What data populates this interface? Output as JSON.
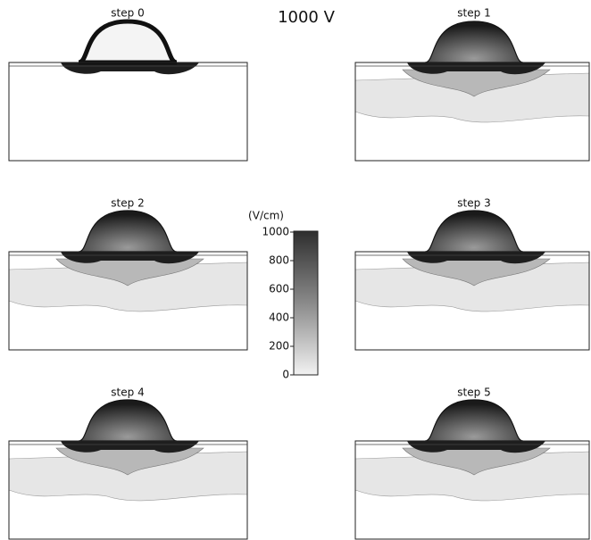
{
  "title": "1000 V",
  "panels": [
    "step 0",
    "step 1",
    "step 2",
    "step 3",
    "step 4",
    "step 5"
  ],
  "colorbar": {
    "label": "(V/cm)",
    "lim": [
      0,
      1000
    ],
    "ticks": [
      0,
      200,
      400,
      600,
      800,
      1000
    ]
  }
}
